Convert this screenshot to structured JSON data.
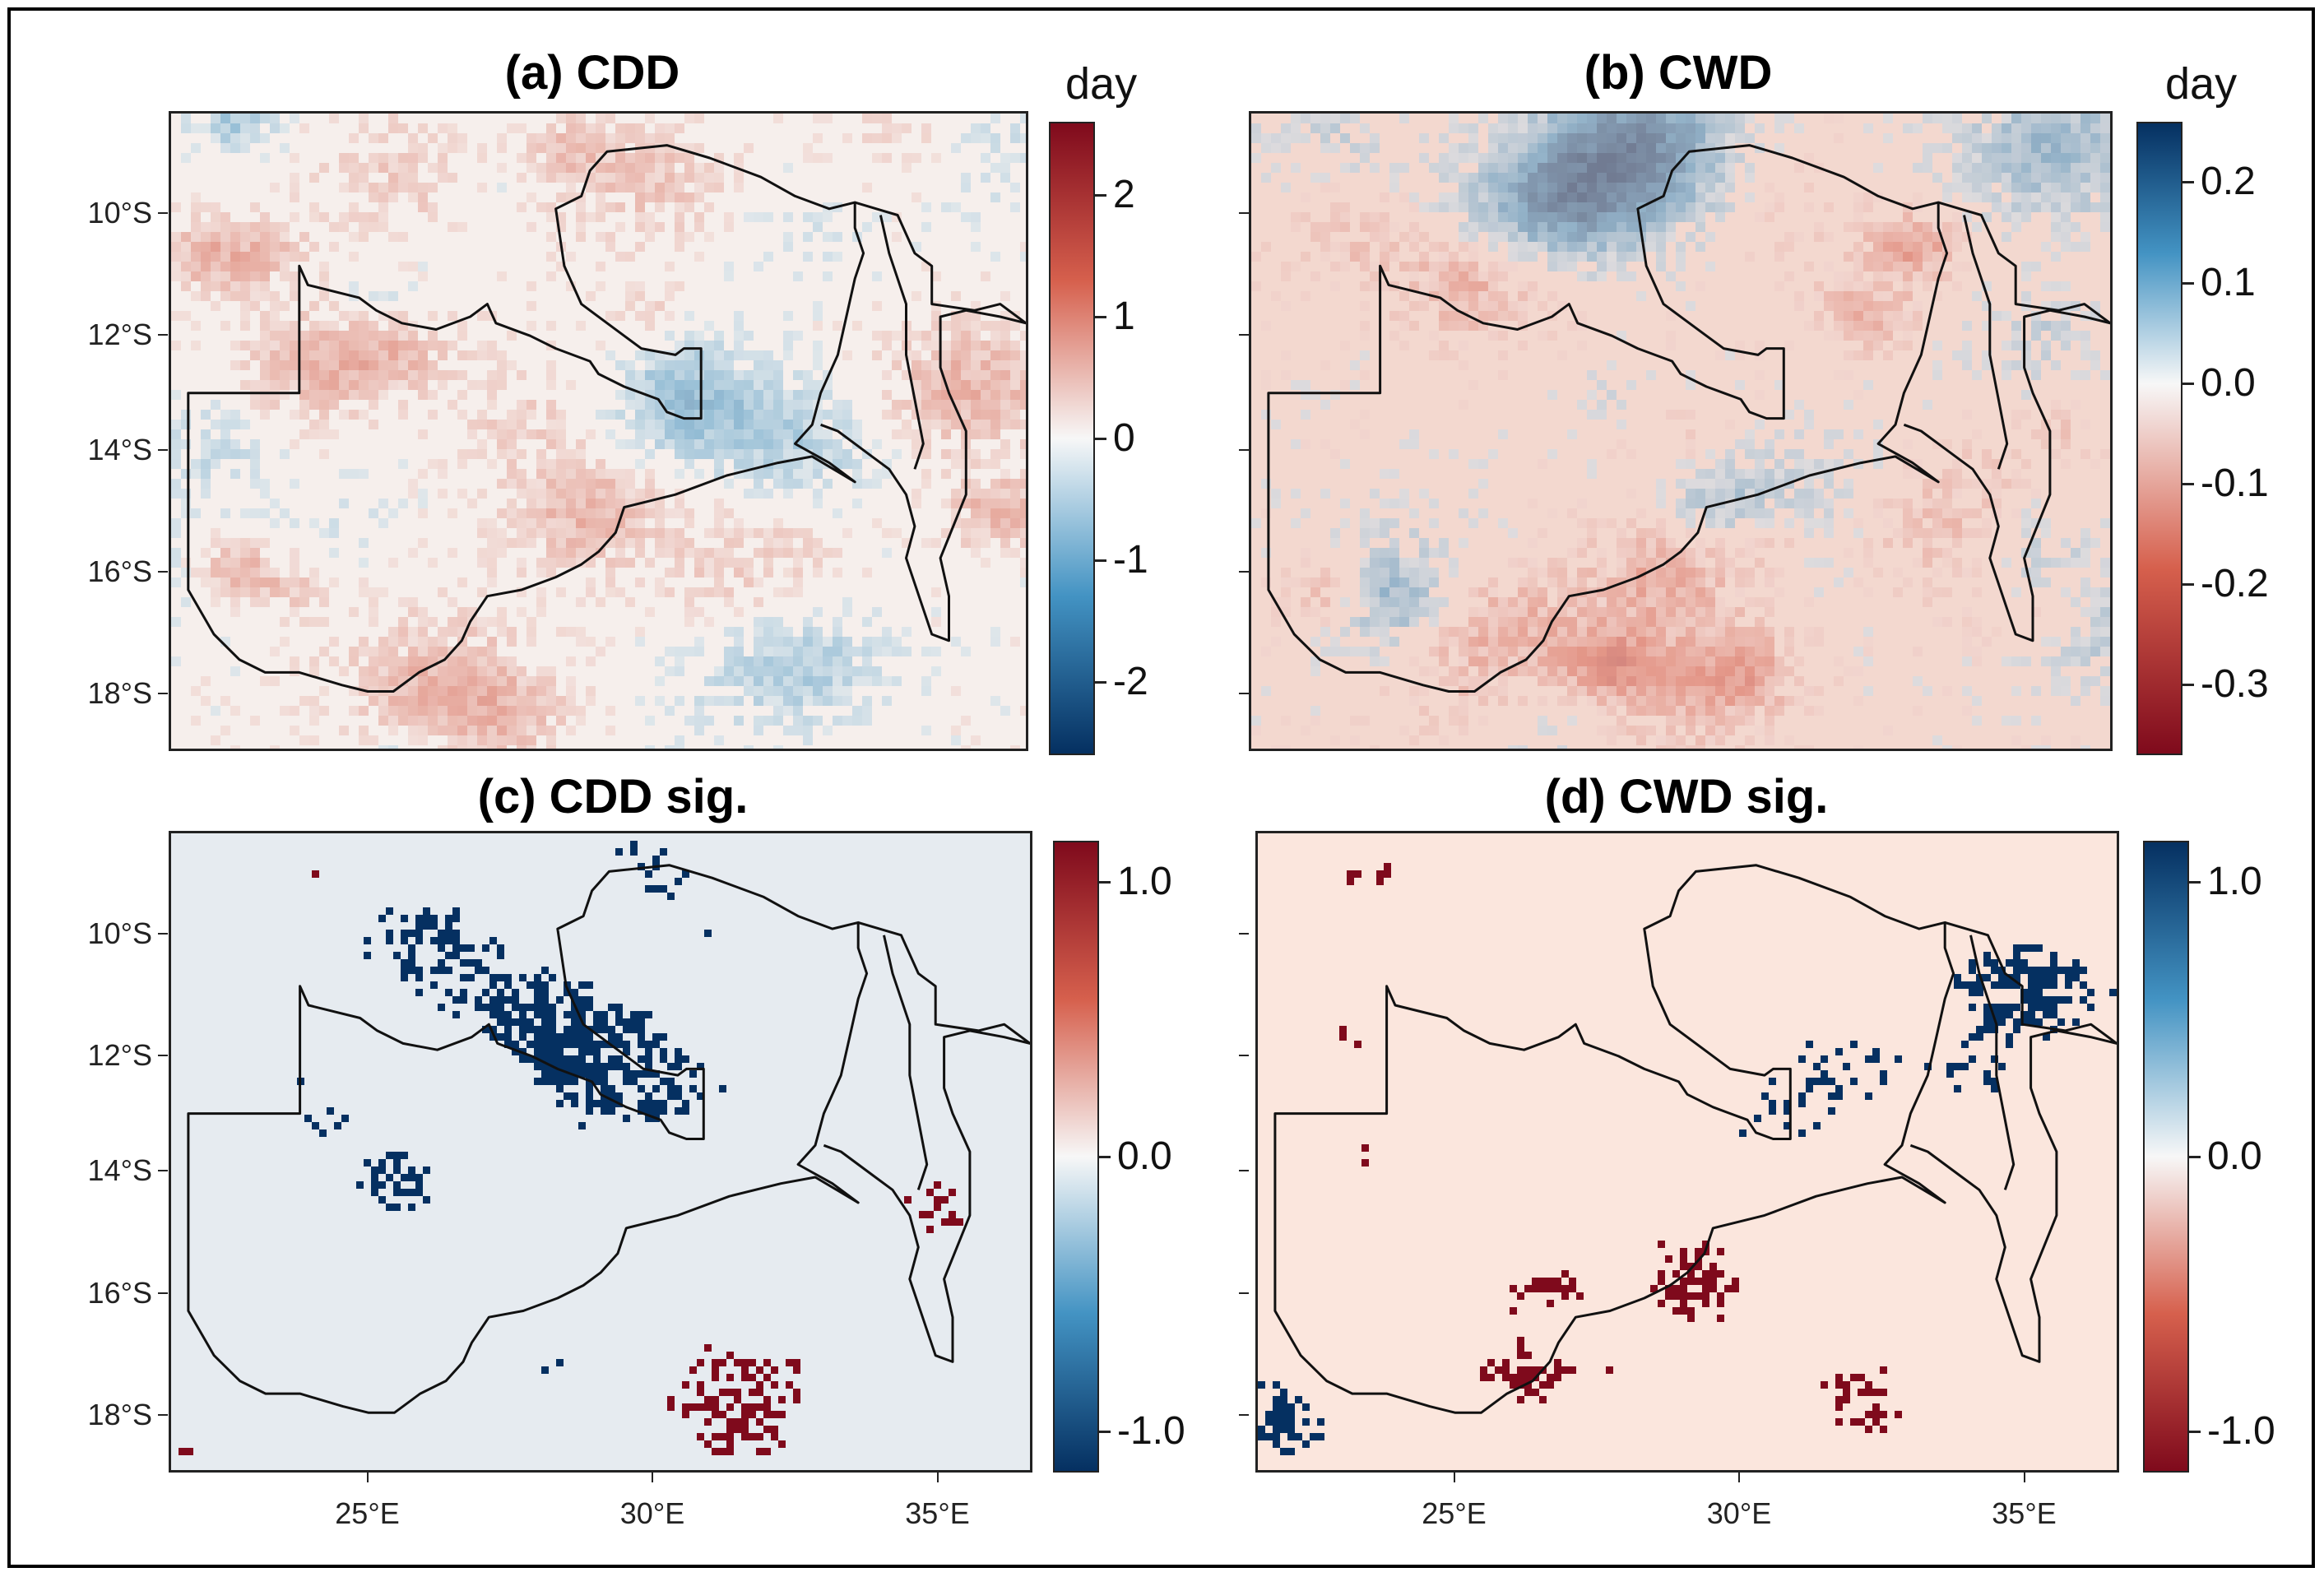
{
  "figure": {
    "panels": [
      {
        "id": "a",
        "title": "(a) CDD",
        "unit": "day",
        "colorbar": {
          "direction": "red-top",
          "min": -2.6,
          "max": 2.6,
          "ticks": [
            {
              "value": 2,
              "label": "2"
            },
            {
              "value": 1,
              "label": "1"
            },
            {
              "value": 0,
              "label": "0"
            },
            {
              "value": -1,
              "label": "-1"
            },
            {
              "value": -2,
              "label": "-2"
            }
          ]
        },
        "background_color": "#f6efec"
      },
      {
        "id": "b",
        "title": "(b) CWD",
        "unit": "day",
        "colorbar": {
          "direction": "blue-top",
          "min": -0.37,
          "max": 0.26,
          "ticks": [
            {
              "value": 0.2,
              "label": "0.2"
            },
            {
              "value": 0.1,
              "label": "0.1"
            },
            {
              "value": 0.0,
              "label": "0.0"
            },
            {
              "value": -0.1,
              "label": "-0.1"
            },
            {
              "value": -0.2,
              "label": "-0.2"
            },
            {
              "value": -0.3,
              "label": "-0.3"
            }
          ]
        },
        "background_color": "#f3d8cf"
      },
      {
        "id": "c",
        "title": "(c) CDD sig.",
        "unit": "",
        "colorbar": {
          "direction": "red-top",
          "min": -1.15,
          "max": 1.15,
          "ticks": [
            {
              "value": 1.0,
              "label": "1.0"
            },
            {
              "value": 0.0,
              "label": "0.0"
            },
            {
              "value": -1.0,
              "label": "-1.0"
            }
          ]
        },
        "background_color": "#e6ebf0"
      },
      {
        "id": "d",
        "title": "(d) CWD sig.",
        "unit": "",
        "colorbar": {
          "direction": "blue-top",
          "min": -1.15,
          "max": 1.15,
          "ticks": [
            {
              "value": 1.0,
              "label": "1.0"
            },
            {
              "value": 0.0,
              "label": "0.0"
            },
            {
              "value": -1.0,
              "label": "-1.0"
            }
          ]
        },
        "background_color": "#fbe6dd"
      }
    ],
    "lat_labels": [
      "10°S",
      "12°S",
      "14°S",
      "16°S",
      "18°S"
    ],
    "lon_labels": [
      "25°E",
      "30°E",
      "35°E"
    ],
    "colors": {
      "dark_red": "#7f0a1c",
      "red": "#d6604d",
      "white": "#f7f7f7",
      "blue": "#4393c3",
      "dark_blue": "#053061",
      "border": "#111111"
    }
  }
}
